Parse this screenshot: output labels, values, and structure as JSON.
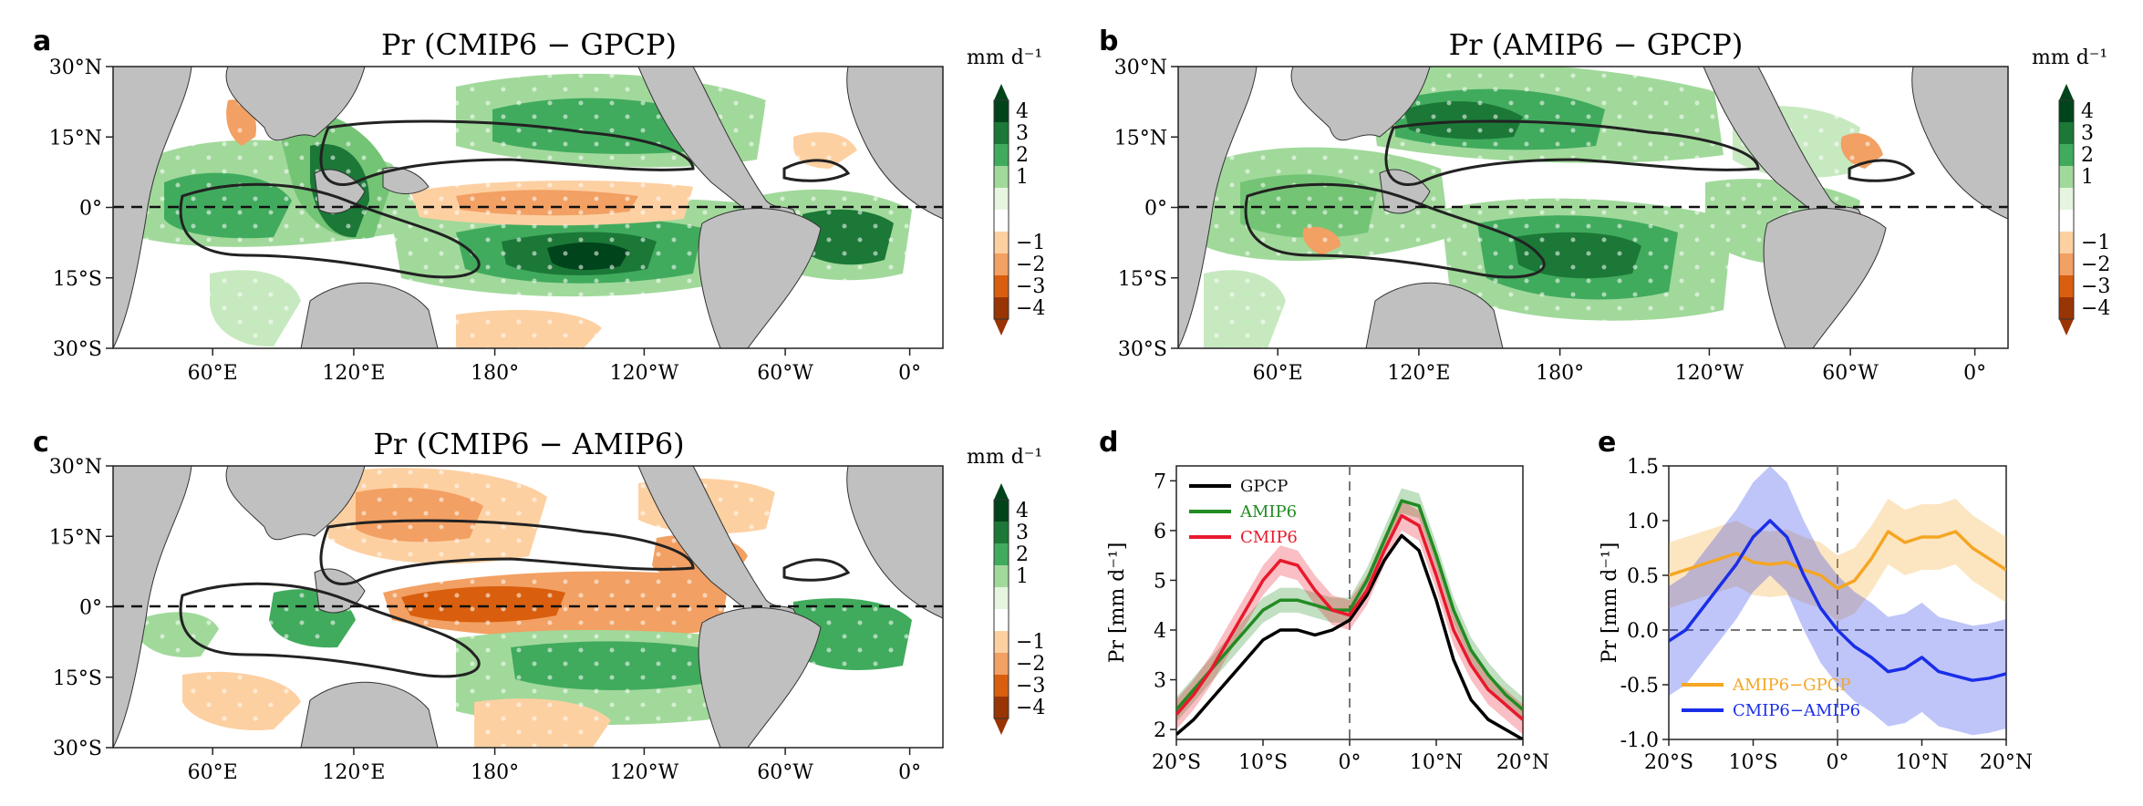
{
  "panels": {
    "a": {
      "letter": "a",
      "title": "Pr (CMIP6 − GPCP)"
    },
    "b": {
      "letter": "b",
      "title": "Pr (AMIP6 − GPCP)"
    },
    "c": {
      "letter": "c",
      "title": "Pr (CMIP6 − AMIP6)"
    },
    "d": {
      "letter": "d"
    },
    "e": {
      "letter": "e"
    }
  },
  "map_axes": {
    "lat_ticks": [
      "30°N",
      "15°N",
      "0°",
      "15°S",
      "30°S"
    ],
    "lon_ticks": [
      "60°E",
      "120°E",
      "180°",
      "120°W",
      "60°W",
      "0°"
    ]
  },
  "colorbar": {
    "unit": "mm d⁻¹",
    "ticks": [
      "4",
      "3",
      "2",
      "1",
      "−1",
      "−2",
      "−3",
      "−4"
    ],
    "colors": [
      "#00441b",
      "#1b7837",
      "#41ab5d",
      "#a1d99b",
      "#e5f5e0",
      "#ffffff",
      "#fdd0a2",
      "#f2a063",
      "#d95f0e",
      "#993404"
    ]
  },
  "chart_data": [
    {
      "id": "d",
      "type": "line",
      "xlabel": "",
      "ylabel": "Pr [mm d⁻¹]",
      "x": [
        -20,
        -18,
        -16,
        -14,
        -12,
        -10,
        -8,
        -6,
        -4,
        -2,
        0,
        2,
        4,
        6,
        8,
        10,
        12,
        14,
        16,
        18,
        20
      ],
      "x_tick_labels": [
        "20°S",
        "10°S",
        "0°",
        "10°N",
        "20°N"
      ],
      "x_tick_values": [
        -20,
        -10,
        0,
        10,
        20
      ],
      "xlim": [
        -20,
        20
      ],
      "ylim": [
        1.8,
        7.3
      ],
      "y_ticks": [
        2,
        3,
        4,
        5,
        6,
        7
      ],
      "legend_position": "top-left",
      "series": [
        {
          "name": "GPCP",
          "color": "#000000",
          "values": [
            1.9,
            2.2,
            2.6,
            3.0,
            3.4,
            3.8,
            4.0,
            4.0,
            3.9,
            4.0,
            4.2,
            4.7,
            5.4,
            5.9,
            5.6,
            4.6,
            3.4,
            2.6,
            2.2,
            2.0,
            1.8
          ],
          "band": 0.0
        },
        {
          "name": "AMIP6",
          "color": "#228b22",
          "values": [
            2.4,
            2.8,
            3.2,
            3.6,
            4.0,
            4.4,
            4.6,
            4.6,
            4.5,
            4.4,
            4.4,
            5.0,
            5.8,
            6.6,
            6.5,
            5.5,
            4.4,
            3.6,
            3.1,
            2.7,
            2.4
          ],
          "band": 0.25
        },
        {
          "name": "CMIP6",
          "color": "#e8192c",
          "values": [
            2.3,
            2.7,
            3.2,
            3.8,
            4.4,
            5.0,
            5.4,
            5.3,
            4.8,
            4.4,
            4.3,
            4.8,
            5.6,
            6.3,
            6.1,
            5.1,
            4.0,
            3.3,
            2.8,
            2.5,
            2.2
          ],
          "band": 0.3
        }
      ]
    },
    {
      "id": "e",
      "type": "line",
      "xlabel": "",
      "ylabel": "Pr [mm d⁻¹]",
      "x": [
        -20,
        -18,
        -16,
        -14,
        -12,
        -10,
        -8,
        -6,
        -4,
        -2,
        0,
        2,
        4,
        6,
        8,
        10,
        12,
        14,
        16,
        18,
        20
      ],
      "x_tick_labels": [
        "20°S",
        "10°S",
        "0°",
        "10°N",
        "20°N"
      ],
      "x_tick_values": [
        -20,
        -10,
        0,
        10,
        20
      ],
      "xlim": [
        -20,
        20
      ],
      "ylim": [
        -1.0,
        1.5
      ],
      "y_ticks": [
        -1.0,
        -0.5,
        0.0,
        0.5,
        1.0,
        1.5
      ],
      "legend_position": "bottom-left",
      "series": [
        {
          "name": "AMIP6−GPCP",
          "color": "#f5a623",
          "values": [
            0.5,
            0.55,
            0.6,
            0.65,
            0.7,
            0.62,
            0.6,
            0.62,
            0.55,
            0.5,
            0.38,
            0.45,
            0.65,
            0.9,
            0.8,
            0.85,
            0.85,
            0.9,
            0.75,
            0.65,
            0.55
          ],
          "band": 0.3
        },
        {
          "name": "CMIP6−AMIP6",
          "color": "#1a2ee8",
          "values": [
            -0.1,
            0.0,
            0.2,
            0.4,
            0.6,
            0.85,
            1.0,
            0.85,
            0.5,
            0.2,
            0.0,
            -0.15,
            -0.25,
            -0.38,
            -0.35,
            -0.25,
            -0.38,
            -0.42,
            -0.46,
            -0.44,
            -0.4
          ],
          "band": 0.5
        }
      ]
    }
  ]
}
